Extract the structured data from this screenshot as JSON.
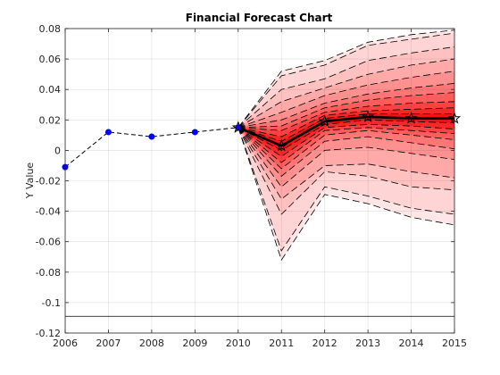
{
  "chart_data": {
    "type": "line",
    "title": "Financial Forecast Chart",
    "xlabel": "",
    "ylabel": "Y Value",
    "xlim": [
      2006,
      2015
    ],
    "ylim": [
      -0.12,
      0.08
    ],
    "grid": true,
    "x_ticks": [
      "2006",
      "2007",
      "2008",
      "2009",
      "2010",
      "2011",
      "2012",
      "2013",
      "2014",
      "2015"
    ],
    "y_ticks": [
      "0.08",
      "0.06",
      "0.04",
      "0.02",
      "0",
      "-0.02",
      "-0.04",
      "-0.06",
      "-0.08",
      "-0.1",
      "-0.12"
    ],
    "history": {
      "x": [
        2006,
        2007,
        2008,
        2009,
        2010
      ],
      "values": [
        -0.011,
        0.012,
        0.009,
        0.012,
        0.015
      ],
      "marker_color": "#0000ff"
    },
    "forecast": {
      "x": [
        2010,
        2011,
        2012,
        2013,
        2014,
        2015
      ],
      "median": [
        0.015,
        0.003,
        0.019,
        0.022,
        0.021,
        0.021
      ],
      "upper_quantiles": [
        [
          0.015,
          0.052,
          0.059,
          0.071,
          0.076,
          0.079
        ],
        [
          0.015,
          0.049,
          0.056,
          0.069,
          0.073,
          0.077
        ],
        [
          0.015,
          0.04,
          0.047,
          0.059,
          0.064,
          0.068
        ],
        [
          0.015,
          0.032,
          0.041,
          0.05,
          0.056,
          0.06
        ],
        [
          0.015,
          0.025,
          0.036,
          0.043,
          0.048,
          0.052
        ],
        [
          0.015,
          0.02,
          0.031,
          0.037,
          0.041,
          0.044
        ],
        [
          0.015,
          0.016,
          0.028,
          0.033,
          0.036,
          0.038
        ],
        [
          0.015,
          0.013,
          0.025,
          0.029,
          0.031,
          0.032
        ],
        [
          0.015,
          0.009,
          0.023,
          0.026,
          0.027,
          0.028
        ],
        [
          0.015,
          0.006,
          0.021,
          0.024,
          0.024,
          0.024
        ]
      ],
      "lower_quantiles": [
        [
          0.015,
          0.0,
          0.017,
          0.02,
          0.019,
          0.018
        ],
        [
          0.015,
          -0.004,
          0.015,
          0.017,
          0.016,
          0.014
        ],
        [
          0.015,
          -0.008,
          0.013,
          0.015,
          0.013,
          0.011
        ],
        [
          0.015,
          -0.012,
          0.01,
          0.013,
          0.01,
          0.007
        ],
        [
          0.015,
          -0.017,
          0.006,
          0.009,
          0.005,
          0.001
        ],
        [
          0.015,
          -0.024,
          0.0,
          0.002,
          -0.002,
          -0.006
        ],
        [
          0.015,
          -0.032,
          -0.01,
          -0.009,
          -0.014,
          -0.018
        ],
        [
          0.015,
          -0.042,
          -0.014,
          -0.017,
          -0.024,
          -0.026
        ],
        [
          0.015,
          -0.066,
          -0.024,
          -0.03,
          -0.038,
          -0.042
        ],
        [
          0.015,
          -0.072,
          -0.029,
          -0.035,
          -0.044,
          -0.049
        ]
      ],
      "band_colors": [
        "#ffe6e6",
        "#ffd4d4",
        "#ffc0c0",
        "#ffa9a9",
        "#ff9090",
        "#ff7676",
        "#ff5c5c",
        "#fc4242",
        "#f52828",
        "#ee1414"
      ]
    },
    "reference_line_y": -0.109
  }
}
